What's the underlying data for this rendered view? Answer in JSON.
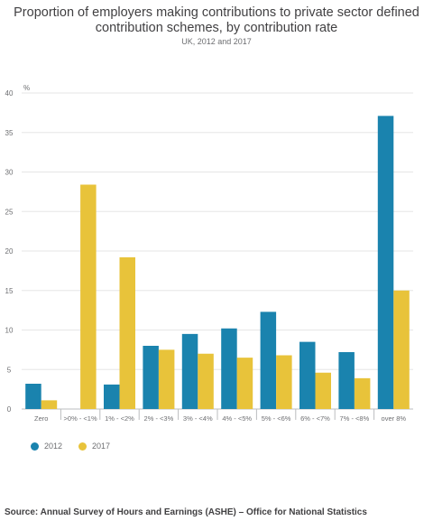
{
  "chart_data": {
    "type": "bar",
    "title": "Proportion of employers making contributions to private sector defined contribution schemes, by contribution rate",
    "subtitle": "UK, 2012 and 2017",
    "ylabel": "%",
    "ylim": [
      0,
      40
    ],
    "yticks": [
      0,
      5,
      10,
      15,
      20,
      25,
      30,
      35,
      40
    ],
    "grid": true,
    "legend_position": "bottom-left",
    "categories": [
      "Zero",
      ">0% - <1%",
      "1% - <2%",
      "2% - <3%",
      "3% - <4%",
      "4% - <5%",
      "5% - <6%",
      "6% - <7%",
      "7% - <8%",
      "over 8%"
    ],
    "series": [
      {
        "name": "2012",
        "color": "#1a83ae",
        "values": [
          3.2,
          0,
          3.1,
          8.0,
          9.5,
          10.2,
          12.3,
          8.5,
          7.2,
          37.1
        ]
      },
      {
        "name": "2017",
        "color": "#e8c33a",
        "values": [
          1.1,
          28.4,
          19.2,
          7.5,
          7.0,
          6.5,
          6.8,
          4.6,
          3.9,
          15.0
        ]
      }
    ]
  },
  "source": "Source: Annual Survey of Hours and Earnings (ASHE) – Office for National Statistics"
}
